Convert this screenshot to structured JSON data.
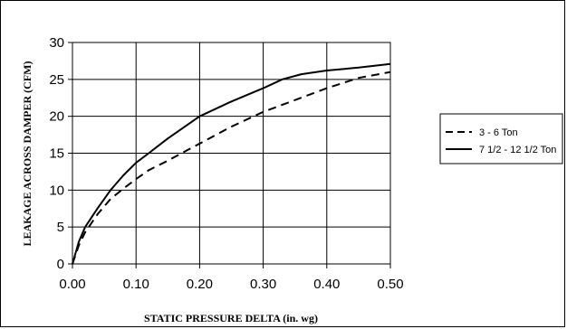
{
  "chart_data": {
    "type": "line",
    "xlabel": "STATIC PRESSURE DELTA (in. wg)",
    "ylabel": "LEAKAGE ACROSS DAMPER (CFM)",
    "xlim": [
      0,
      0.5
    ],
    "ylim": [
      0,
      30
    ],
    "x_ticks": [
      "0.00",
      "0.10",
      "0.20",
      "0.30",
      "0.40",
      "0.50"
    ],
    "y_ticks": [
      "0",
      "5",
      "10",
      "15",
      "20",
      "25",
      "30"
    ],
    "grid": true,
    "legend_position": "right",
    "series": [
      {
        "name": "3 - 6 Ton",
        "style": "dashed",
        "color": "#000000",
        "x": [
          0,
          0.01,
          0.02,
          0.04,
          0.06,
          0.08,
          0.1,
          0.12,
          0.15,
          0.2,
          0.25,
          0.3,
          0.35,
          0.4,
          0.45,
          0.5
        ],
        "y": [
          0,
          2.5,
          4.3,
          6.8,
          8.8,
          10.2,
          11.5,
          12.7,
          14.0,
          16.3,
          18.6,
          20.6,
          22.2,
          23.8,
          25.2,
          26.0
        ]
      },
      {
        "name": "7 1/2 - 12 1/2 Ton",
        "style": "solid",
        "color": "#000000",
        "x": [
          0,
          0.01,
          0.02,
          0.04,
          0.06,
          0.08,
          0.1,
          0.12,
          0.15,
          0.2,
          0.25,
          0.3,
          0.33,
          0.36,
          0.4,
          0.45,
          0.5
        ],
        "y": [
          0,
          3.0,
          5.0,
          7.6,
          10.0,
          12.0,
          13.7,
          15.0,
          17.0,
          20.0,
          22.0,
          23.8,
          25.0,
          25.7,
          26.2,
          26.6,
          27.1
        ]
      }
    ]
  }
}
